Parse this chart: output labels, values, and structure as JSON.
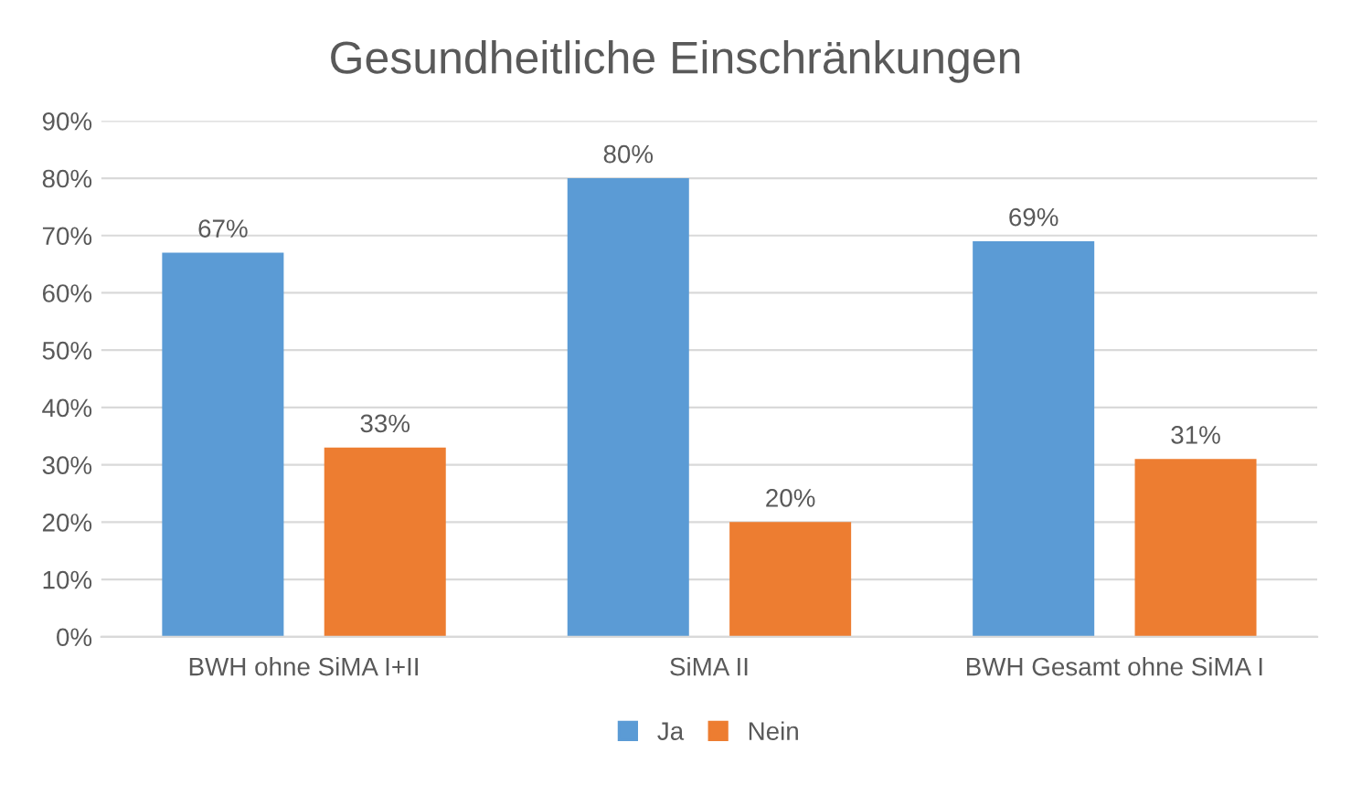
{
  "chart_data": {
    "type": "bar",
    "title": "Gesundheitliche Einschränkungen",
    "categories": [
      "BWH ohne SiMA I+II",
      "SiMA II",
      "BWH Gesamt ohne SiMA I"
    ],
    "series": [
      {
        "name": "Ja",
        "color": "#5b9bd5",
        "values": [
          67,
          80,
          69
        ],
        "value_labels": [
          "67%",
          "80%",
          "69%"
        ]
      },
      {
        "name": "Nein",
        "color": "#ed7d31",
        "values": [
          33,
          20,
          31
        ],
        "value_labels": [
          "33%",
          "20%",
          "31%"
        ]
      }
    ],
    "ylim": [
      0,
      90
    ],
    "yticks": [
      {
        "value": 0,
        "label": "0%"
      },
      {
        "value": 10,
        "label": "10%"
      },
      {
        "value": 20,
        "label": "20%"
      },
      {
        "value": 30,
        "label": "30%"
      },
      {
        "value": 40,
        "label": "40%"
      },
      {
        "value": 50,
        "label": "50%"
      },
      {
        "value": 60,
        "label": "60%"
      },
      {
        "value": 70,
        "label": "70%"
      },
      {
        "value": 80,
        "label": "80%"
      },
      {
        "value": 90,
        "label": "90%"
      }
    ],
    "grid": "y",
    "legend": "bottom"
  }
}
